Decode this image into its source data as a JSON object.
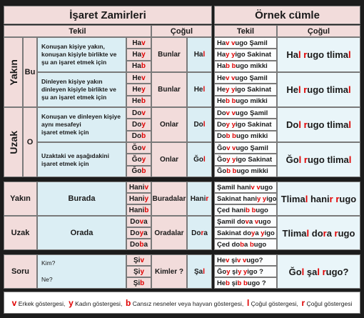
{
  "header": {
    "left_title": "İşaret Zamirleri",
    "right_title": "Örnek cümle",
    "left_tekil": "Tekil",
    "left_cogul": "Çoğul",
    "right_tekil": "Tekil",
    "right_cogul": "Çoğul"
  },
  "highlight_color": "#e00000",
  "blocks": [
    {
      "label": "Yakın",
      "sub": "Bu",
      "entries": [
        {
          "desc": [
            "Konuşan kişiye yakın,",
            "konuşan kişiyle birlikte ve",
            "şu an işaret etmek için"
          ],
          "forms": [
            [
              "Ha",
              {
                "mark": "v"
              }
            ],
            [
              "Ha",
              {
                "mark": "y"
              }
            ],
            [
              "Ha",
              {
                "mark": "b"
              }
            ]
          ],
          "plural": "Bunlar",
          "root": [
            "Ha",
            {
              "mark": "l"
            }
          ],
          "sentences": [
            [
              "Ha",
              {
                "mark": "v"
              },
              " ",
              {
                "mark": "v"
              },
              "ugo Şamil"
            ],
            [
              "Ha",
              {
                "mark": "y"
              },
              " ",
              {
                "mark": "y"
              },
              "igo Sakinat"
            ],
            [
              "Ha",
              {
                "mark": "b"
              },
              " ",
              {
                "mark": "b"
              },
              "ugo mikki"
            ]
          ],
          "plural_sentence": [
            "Ha",
            {
              "mark": "l"
            },
            " ",
            {
              "mark": "r"
            },
            "ugo tlima",
            {
              "mark": "l"
            }
          ]
        },
        {
          "desc": [
            "Dinleyen kişiye yakın",
            "dinleyen kişiyle birlikte ve",
            "şu an işaret etmek için"
          ],
          "forms": [
            [
              "He",
              {
                "mark": "v"
              }
            ],
            [
              "He",
              {
                "mark": "y"
              }
            ],
            [
              "He",
              {
                "mark": "b"
              }
            ]
          ],
          "plural": "Bunlar",
          "root": [
            "He",
            {
              "mark": "l"
            }
          ],
          "sentences": [
            [
              "He",
              {
                "mark": "v"
              },
              " ",
              {
                "mark": "v"
              },
              "ugo Şamil"
            ],
            [
              "He",
              {
                "mark": "y"
              },
              " ",
              {
                "mark": "y"
              },
              "igo Sakinat"
            ],
            [
              "He",
              {
                "mark": "b"
              },
              " ",
              {
                "mark": "b"
              },
              "ugo mikki"
            ]
          ],
          "plural_sentence": [
            "He",
            {
              "mark": "l"
            },
            " ",
            {
              "mark": "r"
            },
            "ugo tlima",
            {
              "mark": "l"
            }
          ]
        }
      ]
    },
    {
      "label": "Uzak",
      "sub": "O",
      "entries": [
        {
          "desc": [
            "Konuşan ve dinleyen kişiye",
            "aynı mesafeyi",
            "işaret etmek için"
          ],
          "forms": [
            [
              "Do",
              {
                "mark": "v"
              }
            ],
            [
              "Do",
              {
                "mark": "y"
              }
            ],
            [
              "Do",
              {
                "mark": "b"
              }
            ]
          ],
          "plural": "Onlar",
          "root": [
            "Do",
            {
              "mark": "l"
            }
          ],
          "sentences": [
            [
              "Do",
              {
                "mark": "v"
              },
              " ",
              {
                "mark": "v"
              },
              "ugo Şamil"
            ],
            [
              "Do",
              {
                "mark": "y"
              },
              " ",
              {
                "mark": "y"
              },
              "igo Sakinat"
            ],
            [
              "Do",
              {
                "mark": "b"
              },
              " ",
              {
                "mark": "b"
              },
              "ugo mikki"
            ]
          ],
          "plural_sentence": [
            "Do",
            {
              "mark": "l"
            },
            " ",
            {
              "mark": "r"
            },
            "ugo tlima",
            {
              "mark": "l"
            }
          ]
        },
        {
          "desc": [
            "Uzaktaki ve aşağıdakini",
            "işaret etmek için"
          ],
          "forms": [
            [
              "Ğo",
              {
                "mark": "v"
              }
            ],
            [
              "Ğo",
              {
                "mark": "y"
              }
            ],
            [
              "Ğo",
              {
                "mark": "b"
              }
            ]
          ],
          "plural": "Onlar",
          "root": [
            "Ğo",
            {
              "mark": "l"
            }
          ],
          "sentences": [
            [
              "Ğo",
              {
                "mark": "v"
              },
              " ",
              {
                "mark": "v"
              },
              "ugo Şamil"
            ],
            [
              "Ğo",
              {
                "mark": "y"
              },
              " ",
              {
                "mark": "y"
              },
              "igo Sakinat"
            ],
            [
              "Ğo",
              {
                "mark": "b"
              },
              " ",
              {
                "mark": "b"
              },
              "ugo mikki"
            ]
          ],
          "plural_sentence": [
            "Ğo",
            {
              "mark": "l"
            },
            " ",
            {
              "mark": "r"
            },
            "ugo tlima",
            {
              "mark": "l"
            }
          ]
        }
      ]
    },
    {
      "label": "Yakın",
      "entries": [
        {
          "desc": [
            "Burada"
          ],
          "forms": [
            [
              "Hani",
              {
                "mark": "v"
              }
            ],
            [
              "Hani",
              {
                "mark": "y"
              }
            ],
            [
              "Hani",
              {
                "mark": "b"
              }
            ]
          ],
          "plural": "Buradalar",
          "root": [
            "Hani",
            {
              "mark": "r"
            }
          ],
          "sentences": [
            [
              "Şamil hani",
              {
                "mark": "v"
              },
              " ",
              {
                "mark": "v"
              },
              "ugo"
            ],
            [
              "Sakinat hani",
              {
                "mark": "y"
              },
              " ",
              {
                "mark": "y"
              },
              "igo"
            ],
            [
              "Çed hani",
              {
                "mark": "b"
              },
              " ",
              {
                "mark": "b"
              },
              "ugo"
            ]
          ],
          "plural_sentence": [
            "Tlima",
            {
              "mark": "l"
            },
            " hani",
            {
              "mark": "r"
            },
            " ",
            {
              "mark": "r"
            },
            "ugo"
          ]
        }
      ]
    },
    {
      "label": "Uzak",
      "entries": [
        {
          "desc": [
            "Orada"
          ],
          "forms": [
            [
              "Do",
              {
                "mark": "v"
              },
              "a"
            ],
            [
              "Do",
              {
                "mark": "y"
              },
              "a"
            ],
            [
              "Do",
              {
                "mark": "b"
              },
              "a"
            ]
          ],
          "plural": "Oradalar",
          "root": [
            "Do",
            {
              "mark": "r"
            },
            "a"
          ],
          "sentences": [
            [
              "Şamil do",
              {
                "mark": "v"
              },
              "a ",
              {
                "mark": "v"
              },
              "ugo"
            ],
            [
              "Sakinat do",
              {
                "mark": "y"
              },
              "a ",
              {
                "mark": "y"
              },
              "igo"
            ],
            [
              "Çed do",
              {
                "mark": "b"
              },
              "a ",
              {
                "mark": "b"
              },
              "ugo"
            ]
          ],
          "plural_sentence": [
            "Tlima",
            {
              "mark": "l"
            },
            " do",
            {
              "mark": "r"
            },
            "a ",
            {
              "mark": "r"
            },
            "ugo"
          ]
        }
      ]
    },
    {
      "label": "Soru",
      "entries": [
        {
          "desc": [
            "Kim?",
            "Ne?"
          ],
          "forms": [
            [
              "Şi",
              {
                "mark": "v"
              }
            ],
            [
              "Şi",
              {
                "mark": "y"
              }
            ],
            [
              "Şi",
              {
                "mark": "b"
              }
            ]
          ],
          "plural": "Kimler ?",
          "root": [
            "Şa",
            {
              "mark": "l"
            }
          ],
          "sentences": [
            [
              "He",
              {
                "mark": "v"
              },
              " şi",
              {
                "mark": "v"
              },
              " ",
              {
                "mark": "v"
              },
              "ugo?"
            ],
            [
              "Ğo",
              {
                "mark": "y"
              },
              " şi",
              {
                "mark": "y"
              },
              " ",
              {
                "mark": "y"
              },
              "igo ?"
            ],
            [
              "He",
              {
                "mark": "b"
              },
              " şi",
              {
                "mark": "b"
              },
              " ",
              {
                "mark": "b"
              },
              "ugo ?"
            ]
          ],
          "plural_sentence": [
            "Ğo",
            {
              "mark": "l"
            },
            " şa",
            {
              "mark": "l"
            },
            " ",
            {
              "mark": "r"
            },
            "ugo?"
          ]
        }
      ]
    }
  ],
  "legend": [
    {
      "mark": "v"
    },
    " Erkek göstergesi,  ",
    {
      "mark": "y"
    },
    " Kadın göstergesi,  ",
    {
      "mark": "b"
    },
    " Cansız nesneler veya hayvan göstergesi,  ",
    {
      "mark": "l"
    },
    " Çoğul göstergesi,  ",
    {
      "mark": "r"
    },
    " Çoğul göstergesi"
  ]
}
